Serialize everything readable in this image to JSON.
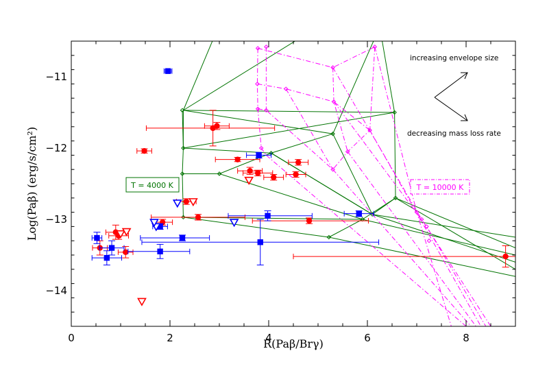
{
  "chart_data": {
    "type": "scatter",
    "xlabel": "R(Paβ/Brγ)",
    "ylabel": "Log(Paβ)  (erg/s/cm²)",
    "xlim": [
      0,
      9
    ],
    "ylim": [
      -14.5,
      -10.5
    ],
    "x_ticks": [
      0,
      2,
      4,
      6,
      8
    ],
    "x_tick_labels": [
      "0",
      "2",
      "4",
      "6",
      "8"
    ],
    "y_ticks": [
      -11,
      -12,
      -13,
      -14
    ],
    "y_tick_labels": [
      "−11",
      "−12",
      "−13",
      "−14"
    ],
    "annotations": {
      "envelope": "increasing envelope size",
      "massloss": "decreasing mass loss rate",
      "t4000": "T = 4000 K",
      "t10000": "T = 10000 K"
    },
    "colors": {
      "red": "#ff0000",
      "blue": "#0000ff",
      "green": "#007300",
      "magenta": "#ff00ff"
    },
    "series": [
      {
        "name": "red filled circles",
        "marker": "circle",
        "color": "#ff0000",
        "points": [
          {
            "x": 2.87,
            "y": -11.72,
            "xerr": [
              1.35,
              1.25
            ],
            "yerr": [
              0.25,
              0.25
            ]
          },
          {
            "x": 2.95,
            "y": -11.69,
            "xerr": [
              0.25,
              0.25
            ],
            "yerr": [
              0.05,
              0.05
            ]
          },
          {
            "x": 1.48,
            "y": -12.04,
            "xerr": [
              0.15,
              0.15
            ],
            "yerr": [
              0.03,
              0.03
            ]
          },
          {
            "x": 3.37,
            "y": -12.16,
            "xerr": [
              0.45,
              0.45
            ],
            "yerr": [
              0.03,
              0.03
            ]
          },
          {
            "x": 3.62,
            "y": -12.32,
            "xerr": [
              0.25,
              0.25
            ],
            "yerr": [
              0.05,
              0.05
            ]
          },
          {
            "x": 3.78,
            "y": -12.35,
            "xerr": [
              0.3,
              0.3
            ],
            "yerr": [
              0.04,
              0.04
            ]
          },
          {
            "x": 4.1,
            "y": -12.41,
            "xerr": [
              0.2,
              0.2
            ],
            "yerr": [
              0.04,
              0.04
            ]
          },
          {
            "x": 4.55,
            "y": -12.37,
            "xerr": [
              0.2,
              0.2
            ],
            "yerr": [
              0.04,
              0.04
            ]
          },
          {
            "x": 4.6,
            "y": -12.2,
            "xerr": [
              0.2,
              0.2
            ],
            "yerr": [
              0.04,
              0.04
            ]
          },
          {
            "x": 2.33,
            "y": -12.75,
            "xerr": [
              0.2,
              0.2
            ],
            "yerr": [
              0.04,
              0.04
            ]
          },
          {
            "x": 2.57,
            "y": -12.97,
            "xerr": [
              0.95,
              0.95
            ],
            "yerr": [
              0.04,
              0.04
            ]
          },
          {
            "x": 1.85,
            "y": -13.04,
            "xerr": [
              0.2,
              0.2
            ],
            "yerr": [
              0.04,
              0.04
            ]
          },
          {
            "x": 4.82,
            "y": -13.02,
            "xerr": [
              1.15,
              1.2
            ],
            "yerr": [
              0.04,
              0.04
            ]
          },
          {
            "x": 0.9,
            "y": -13.18,
            "xerr": [
              0.2,
              0.2
            ],
            "yerr": [
              0.1,
              0.1
            ]
          },
          {
            "x": 0.96,
            "y": -13.23,
            "xerr": [
              0.2,
              0.2
            ],
            "yerr": [
              0.05,
              0.05
            ]
          },
          {
            "x": 0.58,
            "y": -13.4,
            "xerr": [
              0.15,
              0.15
            ],
            "yerr": [
              0.1,
              0.1
            ]
          },
          {
            "x": 1.1,
            "y": -13.46,
            "xerr": [
              0.15,
              0.15
            ],
            "yerr": [
              0.08,
              0.08
            ]
          },
          {
            "x": 8.8,
            "y": -13.52,
            "xerr": [
              4.3,
              0.2
            ],
            "yerr": [
              0.15,
              0.15
            ]
          }
        ]
      },
      {
        "name": "red open triangles",
        "marker": "triangle-open",
        "color": "#ff0000",
        "points": [
          {
            "x": 2.47,
            "y": -12.75
          },
          {
            "x": 3.6,
            "y": -12.45
          },
          {
            "x": 1.43,
            "y": -14.15
          },
          {
            "x": 1.0,
            "y": -13.2
          },
          {
            "x": 1.12,
            "y": -13.17
          }
        ]
      },
      {
        "name": "blue filled squares",
        "marker": "square",
        "color": "#0000ff",
        "points": [
          {
            "x": 1.96,
            "y": -10.92,
            "xerr": [
              0.08,
              0.08
            ],
            "yerr": [
              0.02,
              0.02
            ]
          },
          {
            "x": 3.8,
            "y": -12.1,
            "xerr": [
              0.25,
              0.25
            ],
            "yerr": [
              0.04,
              0.04
            ]
          },
          {
            "x": 3.98,
            "y": -12.95,
            "xerr": [
              0.8,
              0.9
            ],
            "yerr": [
              0.07,
              0.07
            ]
          },
          {
            "x": 5.83,
            "y": -12.92,
            "xerr": [
              0.3,
              0.3
            ],
            "yerr": [
              0.04,
              0.04
            ]
          },
          {
            "x": 0.52,
            "y": -13.26,
            "xerr": [
              0.1,
              0.1
            ],
            "yerr": [
              0.08,
              0.08
            ]
          },
          {
            "x": 0.82,
            "y": -13.4,
            "xerr": [
              0.25,
              0.25
            ],
            "yerr": [
              0.1,
              0.1
            ]
          },
          {
            "x": 0.72,
            "y": -13.54,
            "xerr": [
              0.3,
              0.3
            ],
            "yerr": [
              0.1,
              0.1
            ]
          },
          {
            "x": 1.8,
            "y": -13.45,
            "xerr": [
              0.65,
              0.6
            ],
            "yerr": [
              0.1,
              0.1
            ]
          },
          {
            "x": 1.8,
            "y": -13.1,
            "xerr": [
              0.15,
              0.15
            ],
            "yerr": [
              0.04,
              0.04
            ]
          },
          {
            "x": 2.25,
            "y": -13.26,
            "xerr": [
              0.85,
              0.55
            ],
            "yerr": [
              0.04,
              0.04
            ]
          },
          {
            "x": 3.83,
            "y": -13.32,
            "xerr": [
              2.4,
              2.4
            ],
            "yerr": [
              0.32,
              0.32
            ]
          }
        ]
      },
      {
        "name": "blue open triangles",
        "marker": "triangle-open",
        "color": "#0000ff",
        "points": [
          {
            "x": 2.15,
            "y": -12.77
          },
          {
            "x": 3.3,
            "y": -13.04
          },
          {
            "x": 1.72,
            "y": -13.1
          },
          {
            "x": 1.68,
            "y": -13.04
          }
        ]
      },
      {
        "name": "T = 4000 K model grid",
        "color": "#007300",
        "style": "solid",
        "lines": [
          [
            [
              2.25,
              -11.47
            ],
            [
              2.27,
              -12.0
            ],
            [
              2.25,
              -12.36
            ],
            [
              2.27,
              -12.97
            ]
          ],
          [
            [
              2.27,
              -11.47
            ],
            [
              2.98,
              -10.3
            ]
          ],
          [
            [
              2.27,
              -11.47
            ],
            [
              5.3,
              -11.8
            ],
            [
              6.1,
              -12.93
            ],
            [
              6.57,
              -12.7
            ]
          ],
          [
            [
              2.27,
              -11.47
            ],
            [
              5.0,
              -10.3
            ]
          ],
          [
            [
              2.27,
              -11.47
            ],
            [
              6.55,
              -11.5
            ],
            [
              6.57,
              -12.7
            ]
          ],
          [
            [
              5.3,
              -11.8
            ],
            [
              6.25,
              -10.3
            ]
          ],
          [
            [
              2.27,
              -12.0
            ],
            [
              4.05,
              -12.07
            ],
            [
              6.1,
              -12.93
            ],
            [
              9.0,
              -13.25
            ]
          ],
          [
            [
              2.27,
              -12.0
            ],
            [
              6.55,
              -11.5
            ]
          ],
          [
            [
              4.05,
              -12.07
            ],
            [
              6.1,
              -12.93
            ]
          ],
          [
            [
              2.25,
              -12.36
            ],
            [
              3.0,
              -12.36
            ],
            [
              4.05,
              -12.07
            ],
            [
              5.3,
              -11.8
            ]
          ],
          [
            [
              3.0,
              -12.36
            ],
            [
              5.9,
              -13.0
            ]
          ],
          [
            [
              2.27,
              -12.97
            ],
            [
              5.9,
              -13.0
            ],
            [
              6.57,
              -12.7
            ]
          ],
          [
            [
              2.27,
              -12.97
            ],
            [
              5.22,
              -13.25
            ],
            [
              9.0,
              -13.8
            ]
          ],
          [
            [
              5.22,
              -13.25
            ],
            [
              5.9,
              -13.0
            ]
          ],
          [
            [
              6.57,
              -12.7
            ],
            [
              9.0,
              -13.4
            ]
          ],
          [
            [
              6.57,
              -12.7
            ],
            [
              9.0,
              -13.7
            ]
          ],
          [
            [
              6.1,
              -12.93
            ],
            [
              9.0,
              -13.6
            ]
          ],
          [
            [
              5.9,
              -13.0
            ],
            [
              9.0,
              -13.5
            ]
          ],
          [
            [
              6.55,
              -11.5
            ],
            [
              6.25,
              -10.3
            ]
          ],
          [
            [
              4.05,
              -12.07
            ],
            [
              4.6,
              -12.3
            ]
          ],
          [
            [
              2.27,
              -12.0
            ],
            [
              2.27,
              -11.47
            ]
          ]
        ],
        "markers": [
          [
            2.25,
            -11.47
          ],
          [
            2.27,
            -12.0
          ],
          [
            2.25,
            -12.36
          ],
          [
            2.27,
            -12.97
          ],
          [
            3.0,
            -12.36
          ],
          [
            4.05,
            -12.07
          ],
          [
            5.3,
            -11.8
          ],
          [
            6.55,
            -11.5
          ],
          [
            6.57,
            -12.7
          ],
          [
            6.1,
            -12.93
          ],
          [
            5.9,
            -13.0
          ],
          [
            5.22,
            -13.25
          ]
        ]
      },
      {
        "name": "T = 10000 K model grid",
        "color": "#ff00ff",
        "style": "dash-dot",
        "lines": [
          [
            [
              3.78,
              -10.6
            ],
            [
              3.77,
              -11.1
            ],
            [
              3.78,
              -11.45
            ],
            [
              3.85,
              -12.0
            ],
            [
              3.95,
              -12.1
            ]
          ],
          [
            [
              3.78,
              -10.6
            ],
            [
              5.3,
              -10.87
            ],
            [
              6.15,
              -10.58
            ]
          ],
          [
            [
              3.77,
              -11.1
            ],
            [
              4.35,
              -11.17
            ],
            [
              5.32,
              -11.35
            ],
            [
              6.05,
              -11.75
            ]
          ],
          [
            [
              3.78,
              -11.45
            ],
            [
              3.95,
              -11.47
            ],
            [
              5.3,
              -12.3
            ],
            [
              5.6,
              -12.05
            ],
            [
              6.05,
              -11.75
            ]
          ],
          [
            [
              5.3,
              -10.87
            ],
            [
              5.32,
              -11.35
            ],
            [
              5.6,
              -12.05
            ]
          ],
          [
            [
              3.95,
              -10.58
            ],
            [
              3.95,
              -11.47
            ]
          ],
          [
            [
              6.15,
              -10.58
            ],
            [
              6.05,
              -11.75
            ]
          ],
          [
            [
              4.35,
              -11.17
            ],
            [
              5.3,
              -12.3
            ]
          ],
          [
            [
              3.95,
              -12.1
            ],
            [
              8.0,
              -14.5
            ]
          ],
          [
            [
              5.3,
              -12.3
            ],
            [
              8.1,
              -14.5
            ]
          ],
          [
            [
              5.6,
              -12.05
            ],
            [
              8.2,
              -14.5
            ]
          ],
          [
            [
              6.05,
              -11.75
            ],
            [
              8.3,
              -14.5
            ]
          ],
          [
            [
              5.32,
              -11.35
            ],
            [
              7.2,
              -13.1
            ],
            [
              8.4,
              -14.5
            ]
          ],
          [
            [
              5.3,
              -10.87
            ],
            [
              7.1,
              -13.0
            ],
            [
              8.5,
              -14.5
            ]
          ],
          [
            [
              6.15,
              -10.58
            ],
            [
              7.0,
              -12.9
            ],
            [
              7.7,
              -14.5
            ]
          ]
        ],
        "markers": [
          [
            3.78,
            -10.6
          ],
          [
            3.77,
            -11.1
          ],
          [
            3.78,
            -11.45
          ],
          [
            3.85,
            -12.0
          ],
          [
            3.95,
            -11.47
          ],
          [
            4.35,
            -11.17
          ],
          [
            5.3,
            -10.87
          ],
          [
            5.32,
            -11.35
          ],
          [
            5.3,
            -12.3
          ],
          [
            5.6,
            -12.05
          ],
          [
            6.05,
            -11.75
          ],
          [
            6.15,
            -10.58
          ],
          [
            3.95,
            -10.58
          ],
          [
            7.1,
            -13.0
          ],
          [
            7.2,
            -13.1
          ],
          [
            7.0,
            -12.9
          ],
          [
            7.25,
            -13.3
          ]
        ]
      }
    ]
  }
}
